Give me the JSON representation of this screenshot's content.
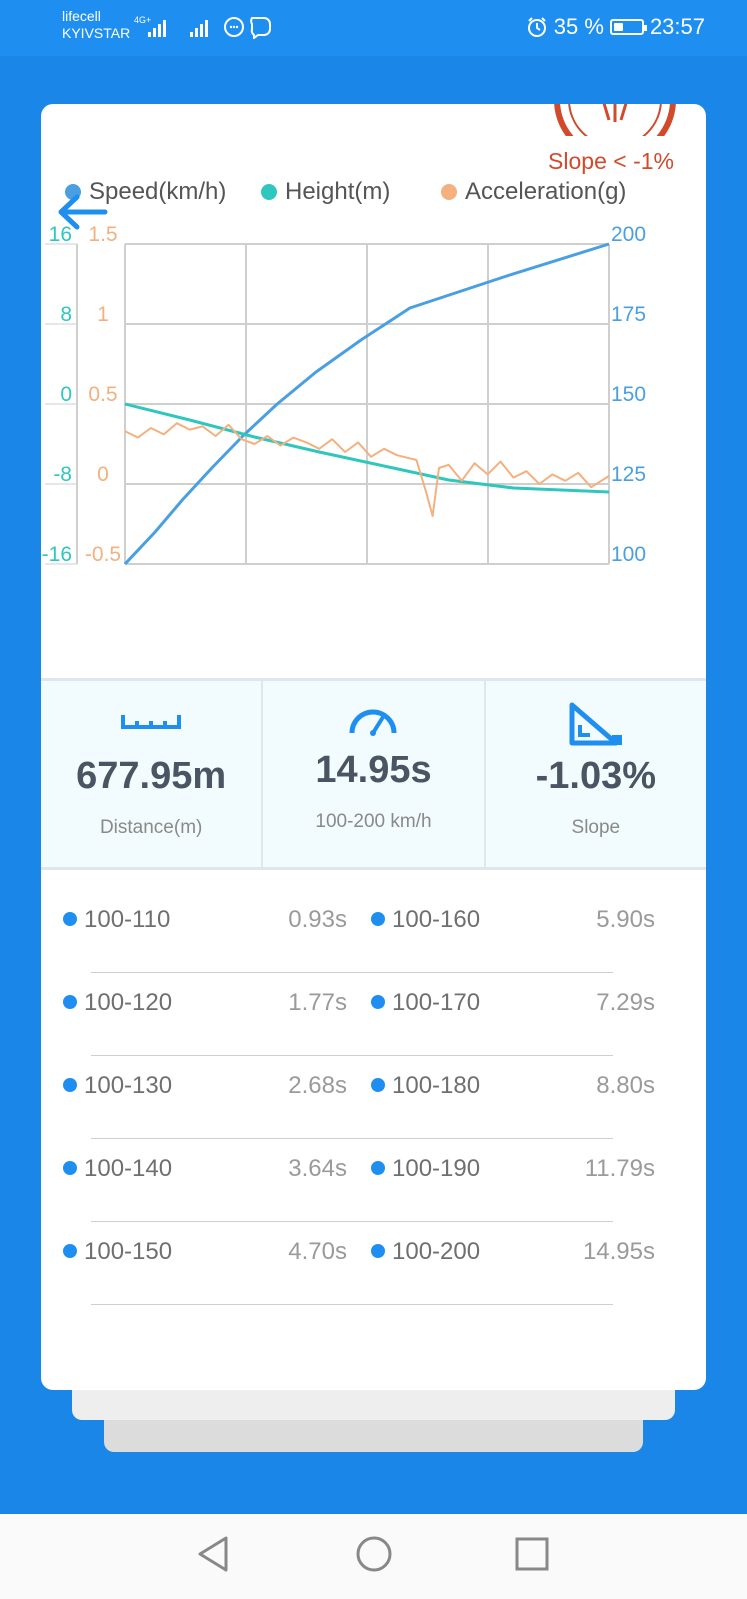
{
  "status_bar": {
    "carrier_1": "lifecell",
    "carrier_2": "KYIVSTAR",
    "network": "4G+",
    "battery": "35 %",
    "battery_level": 0.35,
    "time": "23:57"
  },
  "header": {
    "slope_note": "Slope < -1%",
    "icons": [
      "back-arrow-icon",
      "stamp-badge-icon"
    ]
  },
  "legend": [
    {
      "label": "Speed(km/h)",
      "color": "#4a9fe0"
    },
    {
      "label": "Height(m)",
      "color": "#2fc7bd"
    },
    {
      "label": "Acceleration(g)",
      "color": "#f4b07e"
    }
  ],
  "chart_data": {
    "type": "line",
    "x_range": [
      0,
      14.95
    ],
    "axes": {
      "height": {
        "ticks": [
          "16",
          "8",
          "0",
          "-8",
          "-16"
        ],
        "range": [
          -16,
          16
        ],
        "color": "#2fc7bd"
      },
      "acceleration": {
        "ticks": [
          "1.5",
          "1",
          "0.5",
          "0",
          "-0.5"
        ],
        "range": [
          -0.5,
          1.5
        ],
        "color": "#f4b07e"
      },
      "speed": {
        "ticks": [
          "200",
          "175",
          "150",
          "125",
          "100"
        ],
        "range": [
          100,
          200
        ],
        "color": "#4a9fe0"
      }
    },
    "grid": true,
    "series": [
      {
        "name": "Speed(km/h)",
        "axis": "speed",
        "color": "#4a9fe0",
        "x": [
          0,
          0.93,
          1.77,
          2.68,
          3.64,
          4.7,
          5.9,
          7.29,
          8.8,
          11.79,
          14.95
        ],
        "y": [
          100,
          110,
          120,
          130,
          140,
          150,
          160,
          170,
          180,
          190,
          200
        ]
      },
      {
        "name": "Height(m)",
        "axis": "height",
        "color": "#2fc7bd",
        "x": [
          0,
          2.0,
          4.0,
          6.0,
          8.0,
          10.0,
          12.0,
          14.95
        ],
        "y": [
          0,
          -1.6,
          -3.3,
          -4.8,
          -6.2,
          -7.6,
          -8.4,
          -8.8
        ]
      },
      {
        "name": "Acceleration(g)",
        "axis": "acceleration",
        "color": "#f4b07e",
        "x": [
          0,
          0.4,
          0.8,
          1.2,
          1.6,
          2.0,
          2.4,
          2.8,
          3.2,
          3.6,
          4.0,
          4.4,
          4.8,
          5.2,
          5.6,
          6.0,
          6.4,
          6.8,
          7.2,
          7.6,
          8.0,
          8.4,
          9.0,
          9.3,
          9.5,
          9.7,
          10.0,
          10.4,
          10.8,
          11.2,
          11.6,
          12.0,
          12.4,
          12.8,
          13.2,
          13.6,
          14.0,
          14.4,
          14.95
        ],
        "y": [
          0.33,
          0.29,
          0.35,
          0.31,
          0.38,
          0.34,
          0.36,
          0.3,
          0.37,
          0.28,
          0.25,
          0.3,
          0.24,
          0.29,
          0.26,
          0.22,
          0.28,
          0.2,
          0.26,
          0.17,
          0.22,
          0.18,
          0.15,
          -0.05,
          -0.2,
          0.1,
          0.12,
          0.02,
          0.13,
          0.06,
          0.14,
          0.04,
          0.08,
          0.0,
          0.06,
          0.02,
          0.07,
          -0.02,
          0.05
        ]
      }
    ]
  },
  "stats": [
    {
      "icon": "ruler-icon",
      "value": "677.95m",
      "label": "Distance(m)"
    },
    {
      "icon": "speedometer-icon",
      "value": "14.95s",
      "label": "100-200 km/h"
    },
    {
      "icon": "slope-icon",
      "value": "-1.03%",
      "label": "Slope"
    }
  ],
  "splits": [
    [
      {
        "range": "100-110",
        "time": "0.93s"
      },
      {
        "range": "100-160",
        "time": "5.90s"
      }
    ],
    [
      {
        "range": "100-120",
        "time": "1.77s"
      },
      {
        "range": "100-170",
        "time": "7.29s"
      }
    ],
    [
      {
        "range": "100-130",
        "time": "2.68s"
      },
      {
        "range": "100-180",
        "time": "8.80s"
      }
    ],
    [
      {
        "range": "100-140",
        "time": "3.64s"
      },
      {
        "range": "100-190",
        "time": "11.79s"
      }
    ],
    [
      {
        "range": "100-150",
        "time": "4.70s"
      },
      {
        "range": "100-200",
        "time": "14.95s"
      }
    ]
  ],
  "nav": [
    "back-triangle-icon",
    "home-circle-icon",
    "recents-square-icon"
  ]
}
